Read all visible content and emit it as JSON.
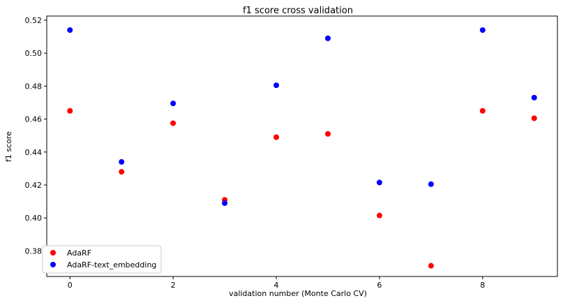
{
  "chart_data": {
    "type": "scatter",
    "title": "f1 score cross validation",
    "xlabel": "validation number (Monte Carlo CV)",
    "ylabel": "f1 score",
    "xlim": [
      -0.45,
      9.45
    ],
    "ylim": [
      0.3645,
      0.5225
    ],
    "xticks": [
      0,
      2,
      4,
      6,
      8
    ],
    "yticks": [
      0.38,
      0.4,
      0.42,
      0.44,
      0.46,
      0.48,
      0.5,
      0.52
    ],
    "ytick_labels": [
      "0.38",
      "0.40",
      "0.42",
      "0.44",
      "0.46",
      "0.48",
      "0.50",
      "0.52"
    ],
    "xtick_labels": [
      "0",
      "2",
      "4",
      "6",
      "8"
    ],
    "legend_position": "lower-left",
    "grid": false,
    "x": [
      0,
      1,
      2,
      3,
      4,
      5,
      6,
      7,
      8,
      9
    ],
    "series": [
      {
        "name": "AdaRF",
        "color": "#ff0000",
        "values": [
          0.465,
          0.428,
          0.4575,
          0.411,
          0.449,
          0.451,
          0.4015,
          0.371,
          0.465,
          0.4605
        ]
      },
      {
        "name": "AdaRF-text_embedding",
        "color": "#0000ff",
        "values": [
          0.514,
          0.434,
          0.4695,
          0.409,
          0.4805,
          0.509,
          0.4215,
          0.4205,
          0.514,
          0.473
        ]
      }
    ]
  }
}
